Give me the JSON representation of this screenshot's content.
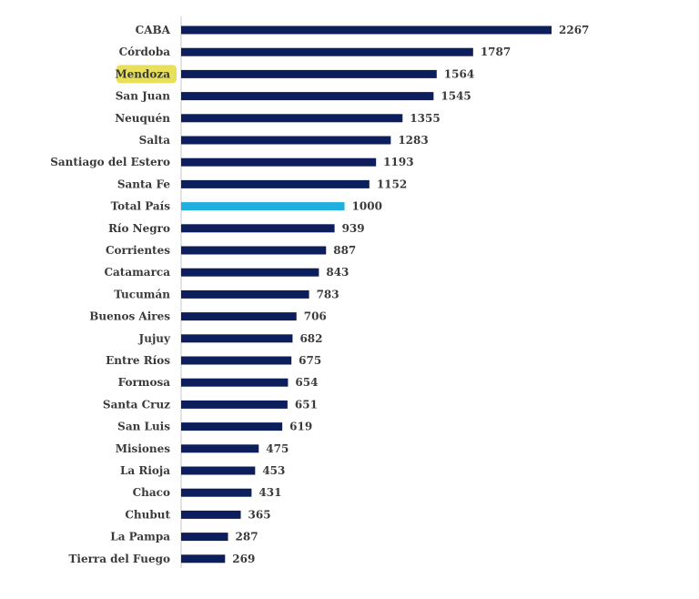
{
  "chart_data": {
    "type": "bar",
    "orientation": "horizontal",
    "title": "",
    "xlabel": "",
    "ylabel": "",
    "xlim": [
      0,
      2267
    ],
    "grid": false,
    "legend": "none",
    "categories": [
      "CABA",
      "Córdoba",
      "Mendoza",
      "San Juan",
      "Neuquén",
      "Salta",
      "Santiago del Estero",
      "Santa Fe",
      "Total País",
      "Río Negro",
      "Corrientes",
      "Catamarca",
      "Tucumán",
      "Buenos Aires",
      "Jujuy",
      "Entre Ríos",
      "Formosa",
      "Santa Cruz",
      "San Luis",
      "Misiones",
      "La Rioja",
      "Chaco",
      "Chubut",
      "La Pampa",
      "Tierra del Fuego"
    ],
    "values": [
      2267,
      1787,
      1564,
      1545,
      1355,
      1283,
      1193,
      1152,
      1000,
      939,
      887,
      843,
      783,
      706,
      682,
      675,
      654,
      651,
      619,
      475,
      453,
      431,
      365,
      287,
      269
    ],
    "highlight_category": "Mendoza",
    "reference_category": "Total País",
    "colors": {
      "bar": "#0c1f5c",
      "reference_bar": "#1fb0e0",
      "highlight": "#e8e05a",
      "axis": "#c8c8c8",
      "text": "#3a3a3a"
    }
  }
}
